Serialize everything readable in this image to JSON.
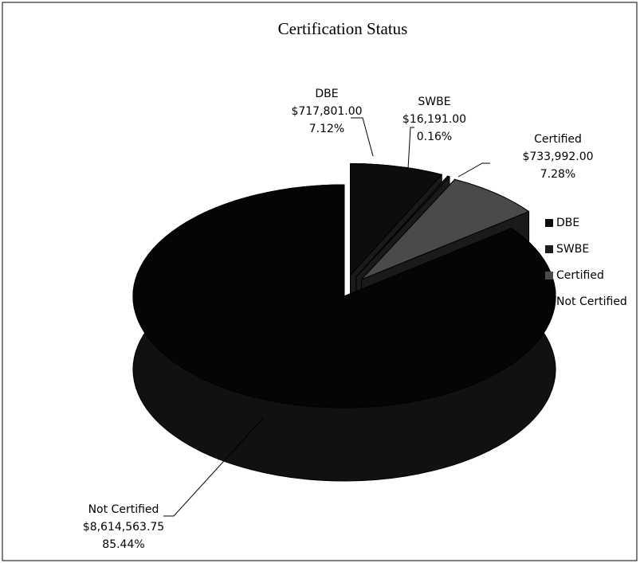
{
  "chart_data": {
    "type": "pie3d",
    "title": "Certification Status",
    "categories": [
      "DBE",
      "SWBE",
      "Certified",
      "Not Certified"
    ],
    "values": [
      717801,
      16191,
      733992,
      8614563.75
    ],
    "value_labels": [
      "$717,801.00",
      "$16,191.00",
      "$733,992.00",
      "$8,614,563.75"
    ],
    "percents": [
      7.12,
      0.16,
      7.28,
      85.44
    ],
    "percent_labels": [
      "7.12%",
      "0.16%",
      "7.28%",
      "85.44%"
    ],
    "colors": [
      "#0d0d0d",
      "#1c1c1c",
      "#4a4a4a",
      "#050505"
    ],
    "exploded": [
      true,
      true,
      true,
      false
    ],
    "legend": "right"
  }
}
